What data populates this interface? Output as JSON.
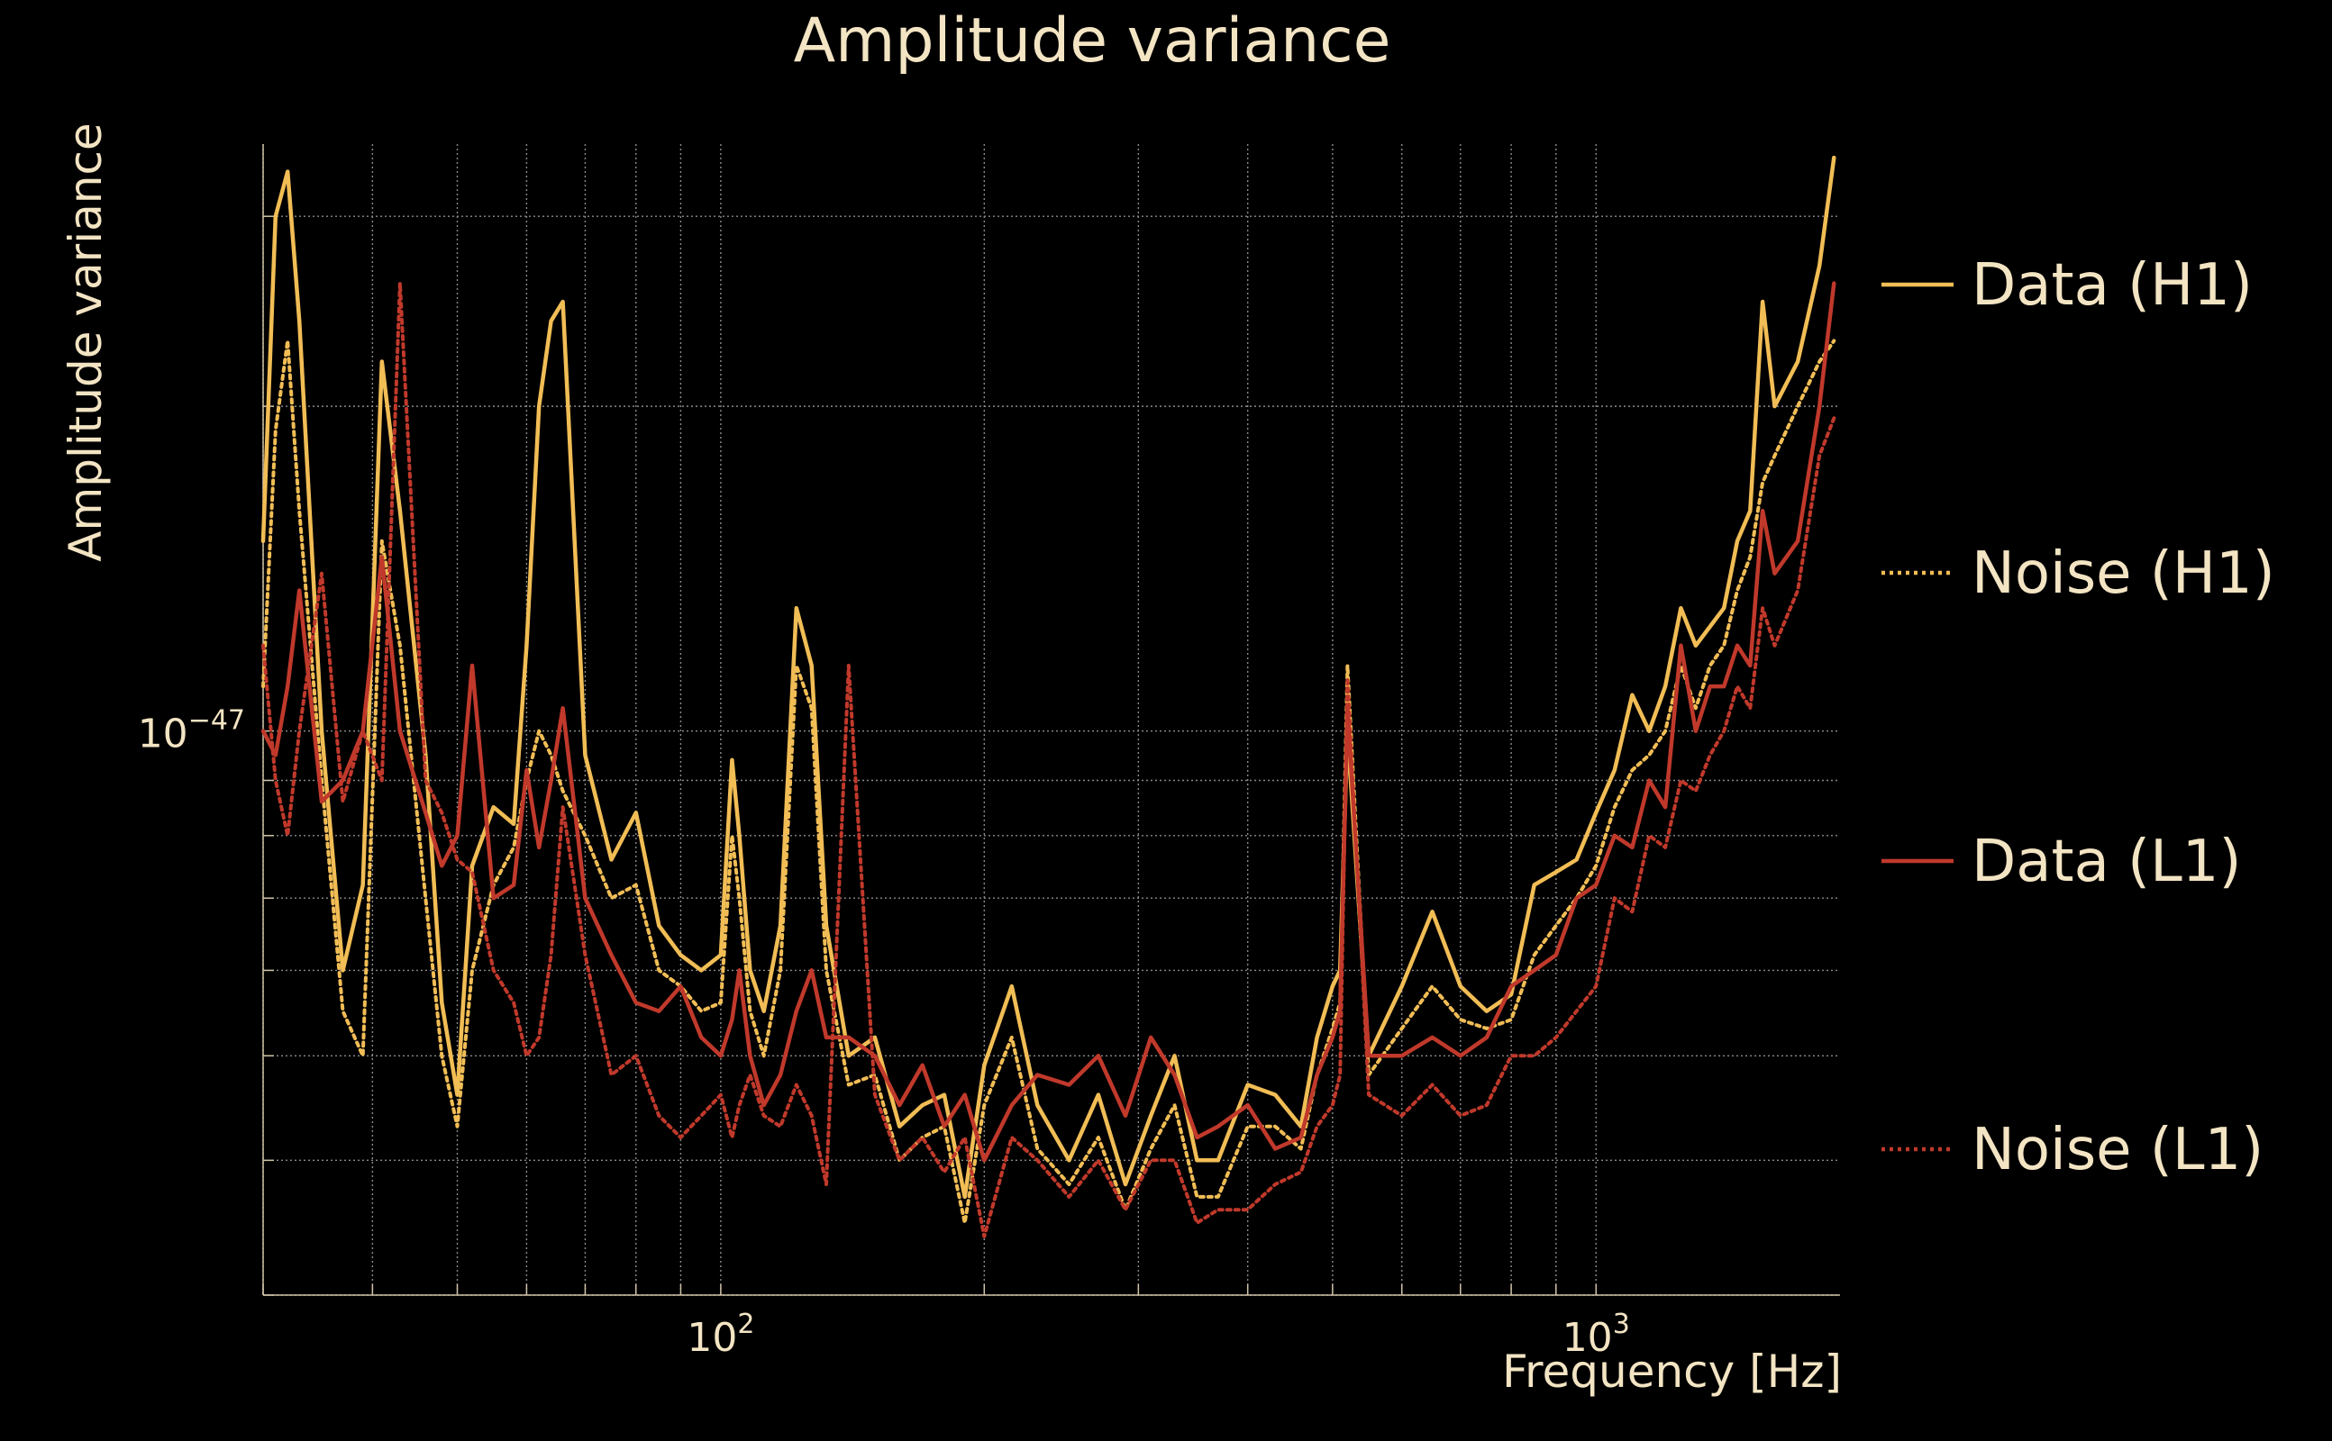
{
  "chart_data": {
    "type": "line",
    "title": "Amplitude variance",
    "xlabel": "Frequency [Hz]",
    "ylabel": "Amplitude variance",
    "xscale": "log",
    "yscale": "log",
    "xlim": [
      30,
      1900
    ],
    "ylim": [
      0.3,
      3.5
    ],
    "y_unit_note": "values in units of 1e-47",
    "x_ticks": [
      {
        "value": 100,
        "label": "10^2"
      },
      {
        "value": 1000,
        "label": "10^3"
      }
    ],
    "y_ticks": [
      {
        "value": 1,
        "label": "10^-47"
      }
    ],
    "grid": true,
    "legend_position": "right",
    "colors": {
      "background": "#000000",
      "text": "#f3e4c3",
      "grid": "#8a8a8a",
      "h1": "#f1bd55",
      "l1": "#c0392b"
    },
    "series": [
      {
        "name": "Data (H1)",
        "style": "solid",
        "color": "#f1bd55",
        "x": [
          30,
          31,
          32,
          33,
          35,
          37,
          39,
          41,
          43,
          46,
          48,
          50,
          52,
          55,
          58,
          60,
          62,
          64,
          66,
          70,
          75,
          80,
          85,
          90,
          95,
          100,
          103,
          105,
          108,
          112,
          117,
          122,
          127,
          132,
          140,
          150,
          160,
          170,
          180,
          190,
          200,
          215,
          230,
          250,
          270,
          290,
          310,
          330,
          350,
          370,
          400,
          430,
          460,
          480,
          500,
          510,
          520,
          550,
          600,
          650,
          700,
          750,
          800,
          850,
          900,
          950,
          1000,
          1050,
          1100,
          1150,
          1200,
          1250,
          1300,
          1350,
          1400,
          1450,
          1500,
          1550,
          1600,
          1700,
          1800,
          1870
        ],
        "y": [
          1.5,
          3.0,
          3.3,
          2.4,
          1.0,
          0.6,
          0.72,
          2.2,
          1.6,
          0.95,
          0.56,
          0.46,
          0.75,
          0.85,
          0.82,
          1.2,
          2.0,
          2.4,
          2.5,
          0.95,
          0.76,
          0.84,
          0.66,
          0.62,
          0.6,
          0.62,
          0.94,
          0.8,
          0.6,
          0.55,
          0.66,
          1.3,
          1.15,
          0.66,
          0.5,
          0.52,
          0.43,
          0.45,
          0.46,
          0.37,
          0.49,
          0.58,
          0.45,
          0.4,
          0.46,
          0.38,
          0.44,
          0.5,
          0.4,
          0.4,
          0.47,
          0.46,
          0.43,
          0.52,
          0.58,
          0.6,
          1.0,
          0.5,
          0.58,
          0.68,
          0.58,
          0.55,
          0.57,
          0.72,
          0.74,
          0.76,
          0.84,
          0.92,
          1.08,
          1.0,
          1.1,
          1.3,
          1.2,
          1.25,
          1.3,
          1.5,
          1.6,
          2.5,
          2.0,
          2.2,
          2.7,
          3.4
        ]
      },
      {
        "name": "Noise (H1)",
        "style": "dotted",
        "color": "#f1bd55",
        "x": [
          30,
          31,
          32,
          33,
          35,
          37,
          39,
          41,
          43,
          46,
          48,
          50,
          52,
          55,
          58,
          60,
          62,
          64,
          66,
          70,
          75,
          80,
          85,
          90,
          95,
          100,
          103,
          105,
          108,
          112,
          117,
          122,
          127,
          132,
          140,
          150,
          160,
          170,
          180,
          190,
          200,
          215,
          230,
          250,
          270,
          290,
          310,
          330,
          350,
          370,
          400,
          430,
          460,
          480,
          500,
          510,
          520,
          550,
          600,
          650,
          700,
          750,
          800,
          850,
          900,
          950,
          1000,
          1050,
          1100,
          1150,
          1200,
          1250,
          1300,
          1350,
          1400,
          1450,
          1500,
          1550,
          1600,
          1700,
          1800,
          1870
        ],
        "y": [
          1.1,
          1.9,
          2.3,
          1.6,
          0.9,
          0.55,
          0.5,
          1.5,
          1.2,
          0.7,
          0.5,
          0.43,
          0.6,
          0.72,
          0.78,
          0.9,
          1.0,
          0.95,
          0.88,
          0.8,
          0.7,
          0.72,
          0.6,
          0.58,
          0.55,
          0.56,
          0.8,
          0.7,
          0.55,
          0.5,
          0.6,
          1.15,
          1.05,
          0.6,
          0.47,
          0.48,
          0.4,
          0.42,
          0.43,
          0.35,
          0.45,
          0.52,
          0.41,
          0.38,
          0.42,
          0.36,
          0.41,
          0.45,
          0.37,
          0.37,
          0.43,
          0.43,
          0.41,
          0.48,
          0.53,
          0.56,
          1.15,
          0.48,
          0.53,
          0.58,
          0.54,
          0.53,
          0.54,
          0.62,
          0.66,
          0.7,
          0.75,
          0.85,
          0.92,
          0.95,
          1.0,
          1.15,
          1.05,
          1.15,
          1.2,
          1.35,
          1.45,
          1.7,
          1.8,
          2.0,
          2.2,
          2.3
        ]
      },
      {
        "name": "Data (L1)",
        "style": "solid",
        "color": "#c0392b",
        "x": [
          30,
          31,
          32,
          33,
          35,
          37,
          39,
          41,
          43,
          46,
          48,
          50,
          52,
          55,
          58,
          60,
          62,
          64,
          66,
          70,
          75,
          80,
          85,
          90,
          95,
          100,
          103,
          105,
          108,
          112,
          117,
          122,
          127,
          132,
          140,
          150,
          160,
          170,
          180,
          190,
          200,
          215,
          230,
          250,
          270,
          290,
          310,
          330,
          350,
          370,
          400,
          430,
          460,
          480,
          500,
          510,
          520,
          550,
          600,
          650,
          700,
          750,
          800,
          850,
          900,
          950,
          1000,
          1050,
          1100,
          1150,
          1200,
          1250,
          1300,
          1350,
          1400,
          1450,
          1500,
          1550,
          1600,
          1700,
          1800,
          1870
        ],
        "y": [
          1.0,
          0.95,
          1.1,
          1.35,
          0.86,
          0.9,
          1.0,
          1.45,
          1.0,
          0.84,
          0.75,
          0.8,
          1.15,
          0.7,
          0.72,
          0.92,
          0.78,
          0.9,
          1.05,
          0.7,
          0.62,
          0.56,
          0.55,
          0.58,
          0.52,
          0.5,
          0.54,
          0.6,
          0.5,
          0.45,
          0.48,
          0.55,
          0.6,
          0.52,
          0.52,
          0.5,
          0.45,
          0.49,
          0.43,
          0.46,
          0.4,
          0.45,
          0.48,
          0.47,
          0.5,
          0.44,
          0.52,
          0.48,
          0.42,
          0.43,
          0.45,
          0.41,
          0.42,
          0.48,
          0.52,
          0.55,
          1.05,
          0.5,
          0.5,
          0.52,
          0.5,
          0.52,
          0.58,
          0.6,
          0.62,
          0.7,
          0.72,
          0.8,
          0.78,
          0.9,
          0.85,
          1.2,
          1.0,
          1.1,
          1.1,
          1.2,
          1.15,
          1.6,
          1.4,
          1.5,
          2.0,
          2.6
        ]
      },
      {
        "name": "Noise (L1)",
        "style": "dotted",
        "color": "#c0392b",
        "x": [
          30,
          31,
          32,
          33,
          35,
          37,
          39,
          41,
          43,
          46,
          48,
          50,
          52,
          55,
          58,
          60,
          62,
          64,
          66,
          70,
          75,
          80,
          85,
          90,
          95,
          100,
          103,
          105,
          108,
          112,
          117,
          122,
          127,
          132,
          140,
          150,
          160,
          170,
          180,
          190,
          200,
          215,
          230,
          250,
          270,
          290,
          310,
          330,
          350,
          370,
          400,
          430,
          460,
          480,
          500,
          510,
          520,
          550,
          600,
          650,
          700,
          750,
          800,
          850,
          900,
          950,
          1000,
          1050,
          1100,
          1150,
          1200,
          1250,
          1300,
          1350,
          1400,
          1450,
          1500,
          1550,
          1600,
          1700,
          1800,
          1870
        ],
        "y": [
          1.2,
          0.9,
          0.8,
          1.0,
          1.4,
          0.86,
          1.0,
          0.9,
          2.6,
          0.9,
          0.84,
          0.76,
          0.74,
          0.6,
          0.56,
          0.5,
          0.52,
          0.62,
          0.85,
          0.62,
          0.48,
          0.5,
          0.44,
          0.42,
          0.44,
          0.46,
          0.42,
          0.45,
          0.48,
          0.44,
          0.43,
          0.47,
          0.44,
          0.38,
          1.15,
          0.46,
          0.4,
          0.42,
          0.39,
          0.42,
          0.34,
          0.42,
          0.4,
          0.37,
          0.4,
          0.36,
          0.4,
          0.4,
          0.35,
          0.36,
          0.36,
          0.38,
          0.39,
          0.43,
          0.45,
          0.48,
          1.12,
          0.46,
          0.44,
          0.47,
          0.44,
          0.45,
          0.5,
          0.5,
          0.52,
          0.55,
          0.58,
          0.7,
          0.68,
          0.8,
          0.78,
          0.9,
          0.88,
          0.95,
          1.0,
          1.1,
          1.05,
          1.3,
          1.2,
          1.35,
          1.8,
          1.95
        ]
      }
    ]
  }
}
